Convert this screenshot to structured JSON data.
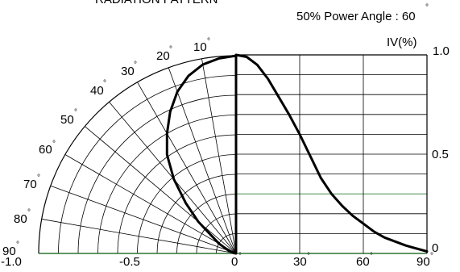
{
  "header": {
    "cropped_title": "RADIATION PATTERN",
    "power_angle_label": "50% Power Angle : 60",
    "degree_symbol": "°"
  },
  "chart_data": {
    "type": "line",
    "title": "",
    "subtitle": "50% Power Angle : 60",
    "ylabel": "IV(%)",
    "ylim": [
      0,
      1.0
    ],
    "right_axis_ticks": [
      "1.0",
      "0.5",
      "0"
    ],
    "polar_radial_ticks": [
      "-1.0",
      "-0.5",
      "0"
    ],
    "polar_angle_labels": [
      "10",
      "20",
      "30",
      "40",
      "50",
      "60",
      "70",
      "80",
      "90"
    ],
    "cartesian_x_ticks": [
      "30",
      "60",
      "90"
    ],
    "grid": true,
    "series": [
      {
        "values_cartesian": [
          {
            "x": 0,
            "y": 1.0
          },
          {
            "x": 5,
            "y": 0.99
          },
          {
            "x": 10,
            "y": 0.95
          },
          {
            "x": 15,
            "y": 0.88
          },
          {
            "x": 20,
            "y": 0.79
          },
          {
            "x": 25,
            "y": 0.7
          },
          {
            "x": 30,
            "y": 0.6
          },
          {
            "x": 35,
            "y": 0.49
          },
          {
            "x": 40,
            "y": 0.38
          },
          {
            "x": 45,
            "y": 0.3
          },
          {
            "x": 50,
            "y": 0.24
          },
          {
            "x": 55,
            "y": 0.19
          },
          {
            "x": 60,
            "y": 0.15
          },
          {
            "x": 65,
            "y": 0.11
          },
          {
            "x": 70,
            "y": 0.08
          },
          {
            "x": 80,
            "y": 0.04
          },
          {
            "x": 90,
            "y": 0.01
          }
        ],
        "values_polar": [
          {
            "angle": 0,
            "r": 1.0
          },
          {
            "angle": 5,
            "r": 0.99
          },
          {
            "angle": 10,
            "r": 0.97
          },
          {
            "angle": 15,
            "r": 0.93
          },
          {
            "angle": 20,
            "r": 0.87
          },
          {
            "angle": 25,
            "r": 0.79
          },
          {
            "angle": 30,
            "r": 0.7
          },
          {
            "angle": 35,
            "r": 0.61
          },
          {
            "angle": 40,
            "r": 0.49
          },
          {
            "angle": 45,
            "r": 0.36
          },
          {
            "angle": 50,
            "r": 0.25
          },
          {
            "angle": 60,
            "r": 0.1
          },
          {
            "angle": 70,
            "r": 0.04
          },
          {
            "angle": 80,
            "r": 0.01
          },
          {
            "angle": 90,
            "r": 0.0
          }
        ]
      }
    ],
    "colors": {
      "curve": "#000000",
      "grid": "#000000",
      "accent_grid": "#2e7d32"
    }
  }
}
